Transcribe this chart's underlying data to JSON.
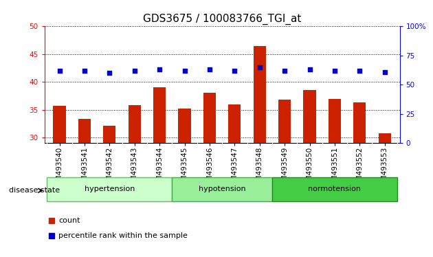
{
  "title": "GDS3675 / 100083766_TGI_at",
  "samples": [
    "GSM493540",
    "GSM493541",
    "GSM493542",
    "GSM493543",
    "GSM493544",
    "GSM493545",
    "GSM493546",
    "GSM493547",
    "GSM493548",
    "GSM493549",
    "GSM493550",
    "GSM493551",
    "GSM493552",
    "GSM493553"
  ],
  "count_values": [
    35.7,
    33.3,
    32.1,
    35.8,
    39.0,
    35.2,
    38.1,
    35.9,
    46.4,
    36.8,
    38.6,
    37.0,
    36.3,
    30.8
  ],
  "percentile_values": [
    62,
    62,
    60,
    62,
    63,
    62,
    63,
    62,
    65,
    62,
    63,
    62,
    62,
    61
  ],
  "ylim_left": [
    29,
    50
  ],
  "ylim_right": [
    0,
    100
  ],
  "yticks_left": [
    30,
    35,
    40,
    45,
    50
  ],
  "yticks_right": [
    0,
    25,
    50,
    75,
    100
  ],
  "bar_color": "#cc2200",
  "dot_color": "#0000cc",
  "bar_width": 0.5,
  "groups": [
    {
      "label": "hypertension",
      "start": 0,
      "end": 4,
      "color": "#ccffcc",
      "edge_color": "#66bb66"
    },
    {
      "label": "hypotension",
      "start": 5,
      "end": 8,
      "color": "#99ee99",
      "edge_color": "#44aa44"
    },
    {
      "label": "normotension",
      "start": 9,
      "end": 13,
      "color": "#44cc44",
      "edge_color": "#228822"
    }
  ],
  "disease_state_label": "disease state",
  "legend_count_label": "count",
  "legend_percentile_label": "percentile rank within the sample",
  "title_fontsize": 11,
  "tick_fontsize": 7.5,
  "label_fontsize": 8,
  "xtick_bg_color": "#cccccc",
  "spine_color": "#000000"
}
